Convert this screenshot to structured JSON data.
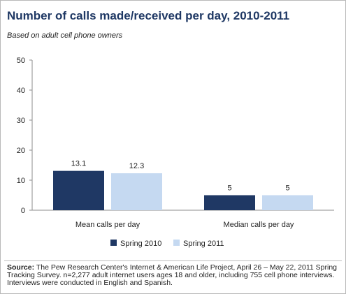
{
  "title": "Number of calls made/received per day, 2010-2011",
  "subtitle": "Based on adult cell phone owners",
  "source": {
    "label": "Source:",
    "text": "The Pew Research Center's Internet & American Life Project, April 26 – May 22, 2011 Spring Tracking Survey. n=2,277 adult internet users ages 18 and older, including 755 cell phone interviews. Interviews were conducted in English and Spanish."
  },
  "chart_data": {
    "type": "bar",
    "categories": [
      "Mean calls per day",
      "Median calls per day"
    ],
    "series": [
      {
        "name": "Spring 2010",
        "values": [
          13.1,
          5
        ],
        "labels": [
          "13.1",
          "5"
        ],
        "color": "#1f3864"
      },
      {
        "name": "Spring 2011",
        "values": [
          12.3,
          5
        ],
        "labels": [
          "12.3",
          "5"
        ],
        "color": "#c5d9f1"
      }
    ],
    "ylim": [
      0,
      50
    ],
    "yticks": [
      "0",
      "10",
      "20",
      "30",
      "40",
      "50"
    ],
    "legend_position": "bottom",
    "grid": false
  }
}
